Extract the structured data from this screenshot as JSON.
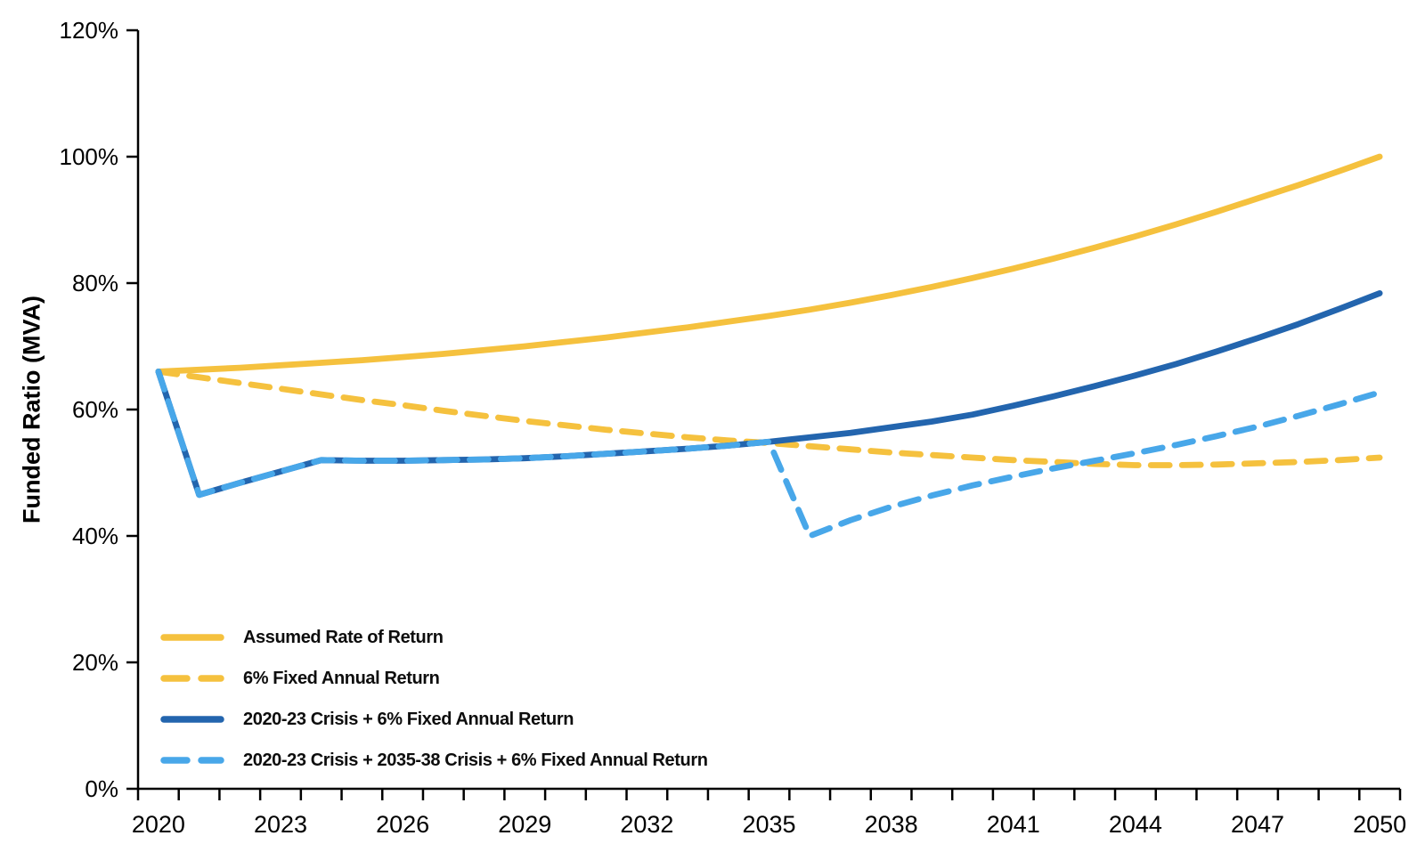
{
  "chart_data": {
    "type": "line",
    "title": "",
    "xlabel": "",
    "ylabel": "Funded Ratio (MVA)",
    "ylim": [
      0,
      120
    ],
    "y_ticks": [
      0,
      20,
      40,
      60,
      80,
      100,
      120
    ],
    "y_tick_suffix": "%",
    "grid": false,
    "legend_position": "inside-bottom-left",
    "axis_color": "#000000",
    "x": [
      2020,
      2021,
      2022,
      2023,
      2024,
      2025,
      2026,
      2027,
      2028,
      2029,
      2030,
      2031,
      2032,
      2033,
      2034,
      2035,
      2036,
      2037,
      2038,
      2039,
      2040,
      2041,
      2042,
      2043,
      2044,
      2045,
      2046,
      2047,
      2048,
      2049,
      2050
    ],
    "x_tick_labels": [
      2020,
      2023,
      2026,
      2029,
      2032,
      2035,
      2038,
      2041,
      2044,
      2047,
      2050
    ],
    "series": [
      {
        "name": "Assumed Rate of Return",
        "style": "solid",
        "color": "#F5C13E",
        "values": [
          66,
          66.3,
          66.6,
          67,
          67.4,
          67.8,
          68.3,
          68.8,
          69.4,
          70,
          70.7,
          71.4,
          72.2,
          73,
          73.9,
          74.8,
          75.8,
          76.9,
          78.1,
          79.4,
          80.8,
          82.3,
          83.9,
          85.6,
          87.4,
          89.3,
          91.3,
          93.4,
          95.5,
          97.7,
          100
        ]
      },
      {
        "name": "6% Fixed Annual Return",
        "style": "dashed",
        "color": "#F5C13E",
        "values": [
          66,
          65.1,
          64.2,
          63.3,
          62.4,
          61.5,
          60.7,
          59.8,
          59,
          58.2,
          57.5,
          56.8,
          56.2,
          55.6,
          55.1,
          54.7,
          54.2,
          53.7,
          53.2,
          52.8,
          52.4,
          52,
          51.7,
          51.4,
          51.2,
          51.2,
          51.3,
          51.5,
          51.7,
          52,
          52.4
        ]
      },
      {
        "name": "2020-23 Crisis + 6% Fixed Annual Return",
        "style": "solid",
        "color": "#2365AE",
        "values": [
          66,
          46.5,
          48.4,
          50.2,
          52,
          51.9,
          51.9,
          52,
          52.1,
          52.3,
          52.6,
          53,
          53.4,
          53.8,
          54.3,
          54.9,
          55.6,
          56.3,
          57.2,
          58.1,
          59.2,
          60.6,
          62.1,
          63.7,
          65.4,
          67.2,
          69.2,
          71.3,
          73.5,
          75.9,
          78.4
        ]
      },
      {
        "name": "2020-23 Crisis + 2035-38 Crisis + 6% Fixed Annual Return",
        "style": "dashed",
        "color": "#48A7E9",
        "values": [
          66,
          46.5,
          48.4,
          50.2,
          52,
          51.9,
          51.9,
          52,
          52.1,
          52.3,
          52.6,
          53,
          53.4,
          53.8,
          54.3,
          54.9,
          40,
          42.5,
          44.6,
          46.4,
          48,
          49.4,
          50.7,
          51.9,
          53.1,
          54.4,
          55.8,
          57.3,
          59,
          60.8,
          62.7
        ]
      }
    ]
  }
}
